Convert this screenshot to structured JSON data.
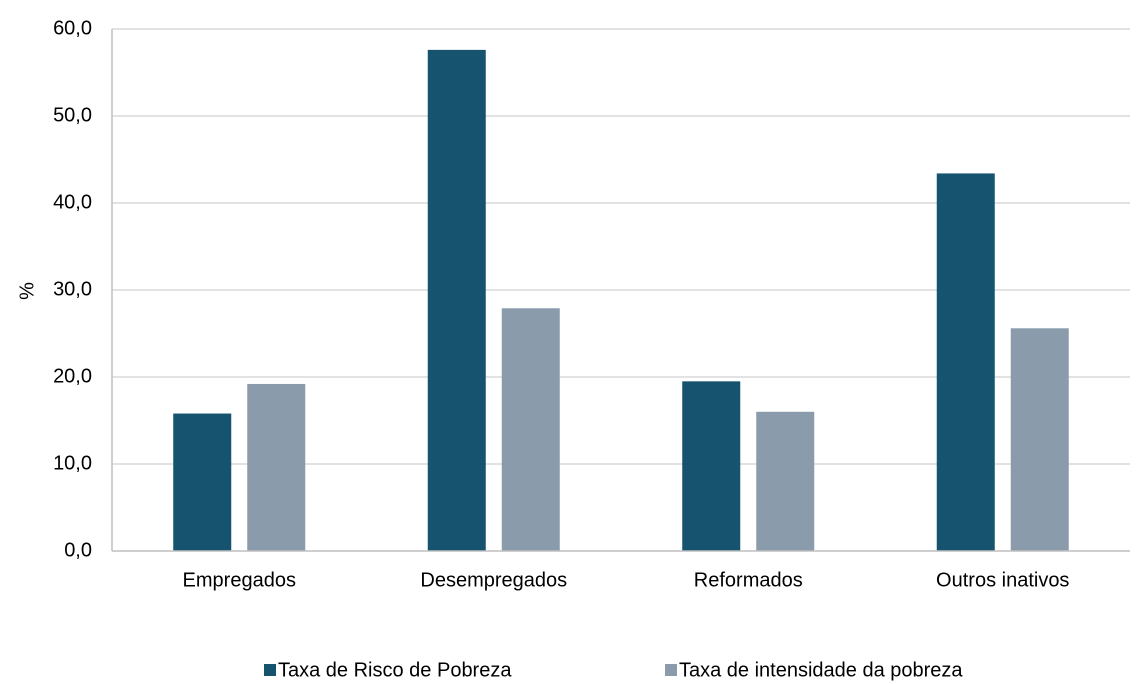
{
  "chart_data": {
    "type": "bar",
    "categories": [
      "Empregados",
      "Desempregados",
      "Reformados",
      "Outros inativos"
    ],
    "series": [
      {
        "name": "Taxa de Risco de Pobreza",
        "values": [
          15.8,
          57.6,
          19.5,
          43.4
        ],
        "color": "#15536f"
      },
      {
        "name": "Taxa de intensidade da pobreza",
        "values": [
          19.2,
          27.9,
          16.0,
          25.6
        ],
        "color": "#8a9cac"
      }
    ],
    "title": "",
    "xlabel": "",
    "ylabel": "%",
    "ylim": [
      0,
      60
    ],
    "yticks": [
      "0,0",
      "10,0",
      "20,0",
      "30,0",
      "40,0",
      "50,0",
      "60,0"
    ],
    "grid": true,
    "legend": "bottom",
    "colors": {
      "grid": "#d9d9d9",
      "axis": "#bfbfbf"
    }
  }
}
